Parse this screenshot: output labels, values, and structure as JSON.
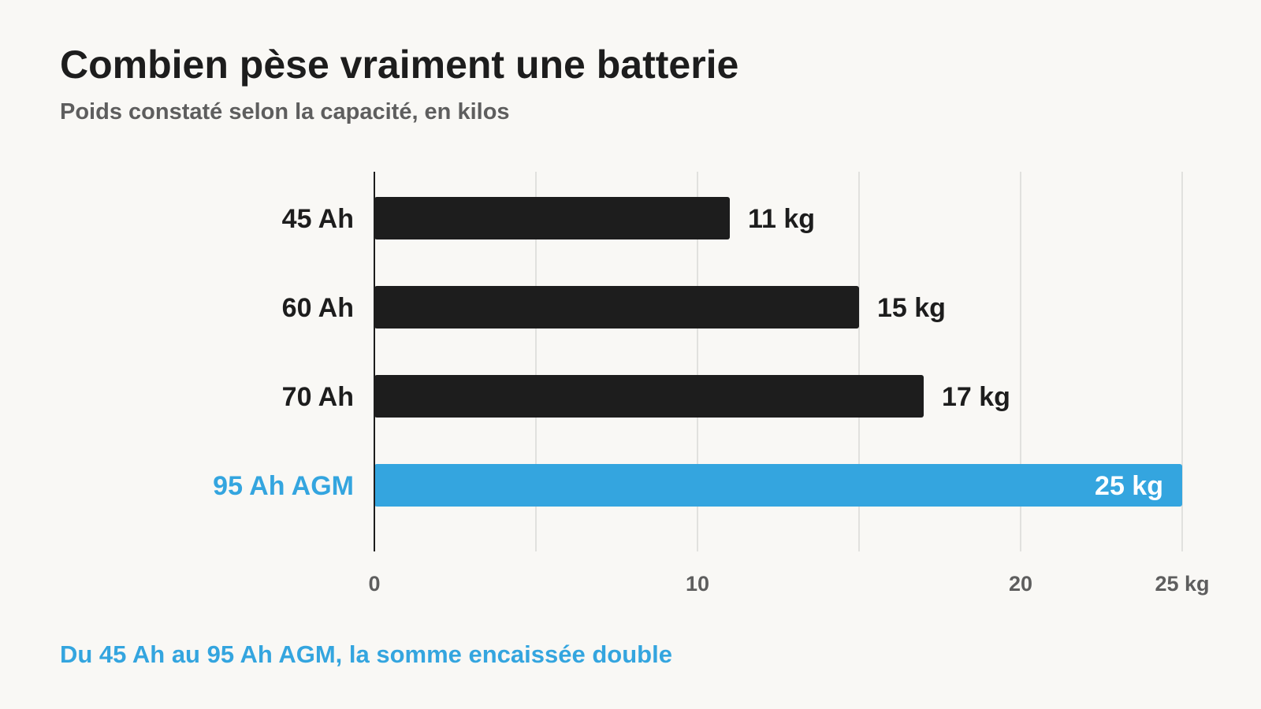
{
  "title": "Combien pèse vraiment une batterie",
  "subtitle": "Poids constaté selon la capacité, en kilos",
  "footnote": "Du 45 Ah au 95 Ah AGM, la somme encaissée double",
  "colors": {
    "bar": "#1d1d1d",
    "highlight": "#34a5df",
    "grid": "#d9d9d6",
    "axis": "#1d1d1d",
    "tick_text": "#5e5e5e"
  },
  "chart_data": {
    "type": "bar",
    "orientation": "horizontal",
    "categories": [
      "45 Ah",
      "60 Ah",
      "70 Ah",
      "95 Ah AGM"
    ],
    "values": [
      11,
      15,
      17,
      25
    ],
    "value_labels": [
      "11 kg",
      "15 kg",
      "17 kg",
      "25 kg"
    ],
    "highlight": "95 Ah AGM",
    "xlim": [
      0,
      25
    ],
    "gridlines": [
      0,
      5,
      10,
      15,
      20,
      25
    ],
    "ticks": [
      {
        "value": 0,
        "label": "0"
      },
      {
        "value": 10,
        "label": "10"
      },
      {
        "value": 20,
        "label": "20"
      },
      {
        "value": 25,
        "label": "25 kg"
      }
    ],
    "grid": true
  }
}
